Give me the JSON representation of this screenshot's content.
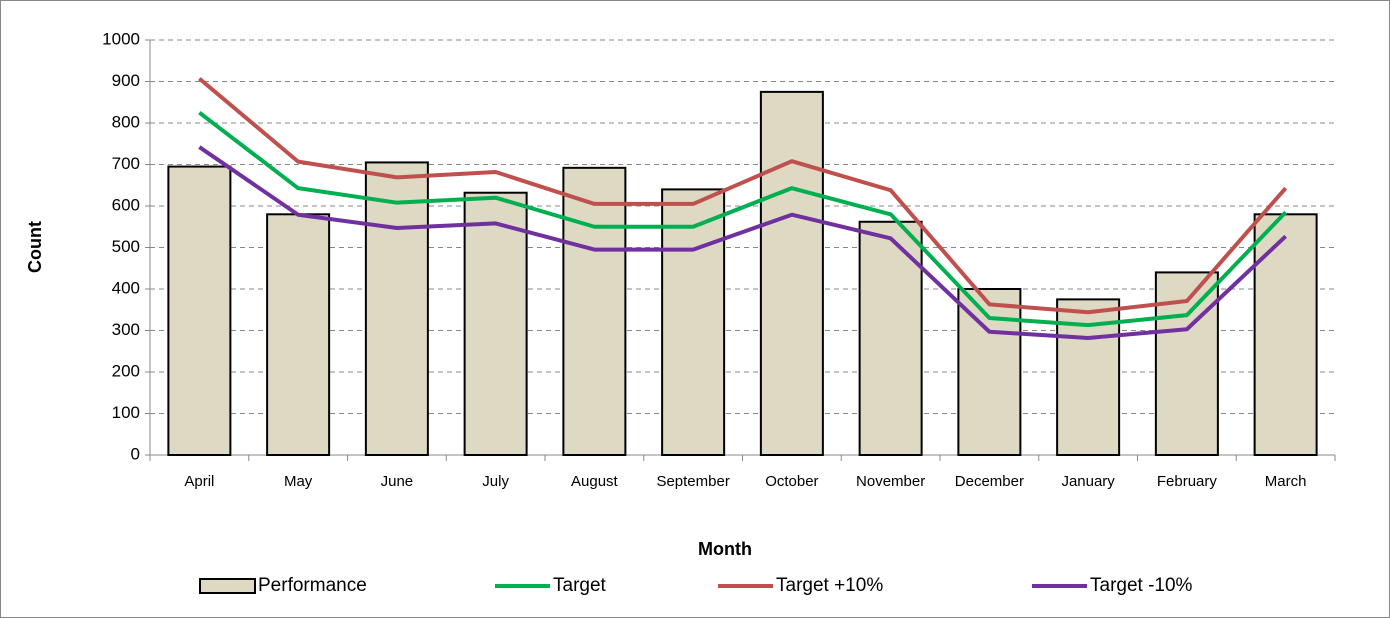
{
  "chart_data": {
    "type": "bar",
    "x_label": "Month",
    "y_label": "Count",
    "categories": [
      "April",
      "May",
      "June",
      "July",
      "August",
      "September",
      "October",
      "November",
      "December",
      "January",
      "February",
      "March"
    ],
    "series": [
      {
        "name": "Performance",
        "type": "bar",
        "color": "#ddd9c3",
        "values": [
          695,
          580,
          705,
          632,
          692,
          640,
          875,
          562,
          400,
          375,
          440,
          580
        ]
      },
      {
        "name": "Target",
        "type": "line",
        "color": "#00b050",
        "values": [
          825,
          643,
          608,
          620,
          550,
          550,
          643,
          580,
          330,
          313,
          337,
          585
        ]
      },
      {
        "name": "Target +10%",
        "type": "line",
        "color": "#c0504d",
        "values": [
          907,
          707,
          669,
          682,
          605,
          605,
          708,
          638,
          363,
          344,
          371,
          643
        ]
      },
      {
        "name": "Target -10%",
        "type": "line",
        "color": "#7030a0",
        "values": [
          742,
          579,
          547,
          558,
          495,
          495,
          579,
          522,
          297,
          282,
          303,
          527
        ]
      }
    ],
    "ylim": [
      0,
      1000
    ],
    "yticks": [
      0,
      100,
      200,
      300,
      400,
      500,
      600,
      700,
      800,
      900,
      1000
    ],
    "grid": true,
    "legend": "bottom"
  }
}
